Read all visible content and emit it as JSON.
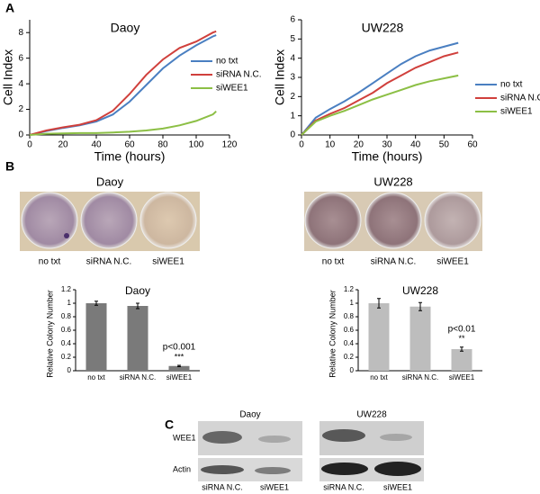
{
  "panel_labels": [
    "A",
    "B",
    "C"
  ],
  "chart_data": [
    {
      "type": "line",
      "title": "Daoy",
      "x_label": "Time (hours)",
      "y_label": "Cell Index",
      "x": [
        0,
        10,
        20,
        30,
        40,
        50,
        60,
        70,
        80,
        90,
        100,
        110,
        112
      ],
      "xlim": [
        0,
        120
      ],
      "xticks": [
        0,
        20,
        40,
        60,
        80,
        100,
        120
      ],
      "ylim": [
        0,
        9
      ],
      "yticks": [
        0,
        2,
        4,
        6,
        8
      ],
      "series": [
        {
          "name": "no txt",
          "color": "#4a7fc1",
          "values": [
            0,
            0.3,
            0.55,
            0.75,
            1.05,
            1.6,
            2.6,
            3.9,
            5.2,
            6.2,
            7.0,
            7.7,
            7.8
          ]
        },
        {
          "name": "siRNA N.C.",
          "color": "#d0403c",
          "values": [
            0,
            0.35,
            0.6,
            0.8,
            1.15,
            1.9,
            3.2,
            4.7,
            5.9,
            6.8,
            7.3,
            8.0,
            8.1
          ]
        },
        {
          "name": "siWEE1",
          "color": "#8cbf45",
          "values": [
            0,
            0.1,
            0.12,
            0.15,
            0.15,
            0.2,
            0.25,
            0.35,
            0.5,
            0.75,
            1.1,
            1.6,
            1.85
          ]
        }
      ]
    },
    {
      "type": "line",
      "title": "UW228",
      "x_label": "Time (hours)",
      "y_label": "Cell Index",
      "x": [
        0,
        5,
        10,
        15,
        20,
        25,
        30,
        35,
        40,
        45,
        50,
        55
      ],
      "xlim": [
        0,
        60
      ],
      "xticks": [
        0,
        10,
        20,
        30,
        40,
        50,
        60
      ],
      "ylim": [
        0,
        6
      ],
      "yticks": [
        0,
        1,
        2,
        3,
        4,
        5,
        6
      ],
      "series": [
        {
          "name": "no txt",
          "color": "#4a7fc1",
          "values": [
            0,
            0.9,
            1.35,
            1.75,
            2.2,
            2.7,
            3.2,
            3.7,
            4.1,
            4.4,
            4.6,
            4.8
          ]
        },
        {
          "name": "siRNA N.C.",
          "color": "#d0403c",
          "values": [
            0,
            0.75,
            1.1,
            1.4,
            1.8,
            2.2,
            2.7,
            3.1,
            3.5,
            3.8,
            4.1,
            4.3
          ]
        },
        {
          "name": "siWEE1",
          "color": "#8cbf45",
          "values": [
            0,
            0.7,
            1.0,
            1.25,
            1.55,
            1.85,
            2.1,
            2.35,
            2.6,
            2.8,
            2.95,
            3.1
          ]
        }
      ]
    },
    {
      "type": "bar",
      "title": "Daoy",
      "y_label": "Relative Colony Number",
      "color": "#7a7a7a",
      "categories": [
        "no txt",
        "siRNA N.C.",
        "siWEE1"
      ],
      "values": [
        1,
        0.96,
        0.07
      ],
      "errors": [
        0.03,
        0.04,
        0.01
      ],
      "ylim": [
        0,
        1.2
      ],
      "yticks": [
        0,
        0.2,
        0.4,
        0.6,
        0.8,
        1,
        1.2
      ],
      "annotations": [
        "p<0.001",
        "***"
      ]
    },
    {
      "type": "bar",
      "title": "UW228",
      "y_label": "Relative Colony Number",
      "color": "#bdbdbd",
      "categories": [
        "no txt",
        "siRNA N.C.",
        "siWEE1"
      ],
      "values": [
        1,
        0.95,
        0.32
      ],
      "errors": [
        0.07,
        0.06,
        0.03
      ],
      "ylim": [
        0,
        1.2
      ],
      "yticks": [
        0,
        0.2,
        0.4,
        0.6,
        0.8,
        1,
        1.2
      ],
      "annotations": [
        "p<0.01",
        "**"
      ]
    }
  ],
  "photos": [
    {
      "title": "Daoy",
      "captions": [
        "no txt",
        "siRNA N.C.",
        "siWEE1"
      ]
    },
    {
      "title": "UW228",
      "captions": [
        "no txt",
        "siRNA N.C.",
        "siWEE1"
      ]
    }
  ],
  "blot": {
    "groups": [
      "Daoy",
      "UW228"
    ],
    "rows": [
      "WEE1",
      "Actin"
    ],
    "lanes": [
      "siRNA N.C.",
      "siWEE1",
      "siRNA N.C.",
      "siWEE1"
    ]
  }
}
